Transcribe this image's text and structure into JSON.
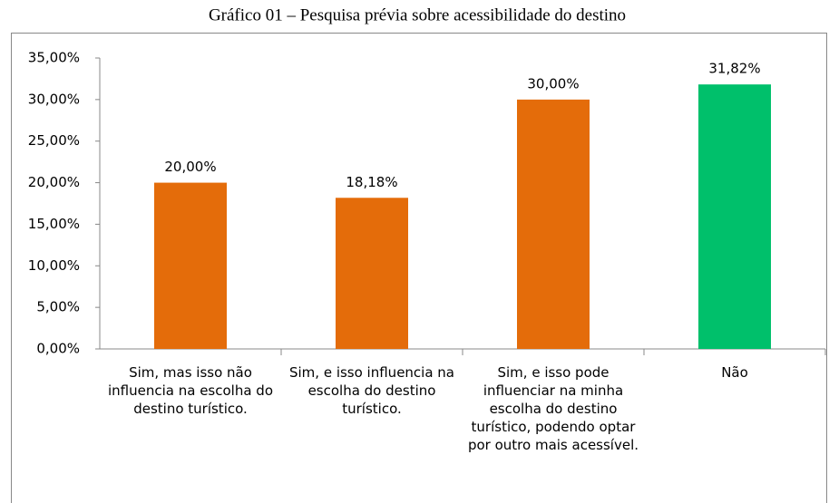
{
  "chart_data": {
    "type": "bar",
    "title": "Gráfico 01 – Pesquisa prévia sobre acessibilidade do destino",
    "categories": [
      "Sim, mas isso não influencia na escolha do destino turístico.",
      "Sim, e isso influencia na escolha do destino turístico.",
      "Sim, e isso pode influenciar na minha escolha do destino turístico, podendo optar por outro mais acessível.",
      "Não"
    ],
    "values": [
      20,
      18.18,
      30,
      31.82
    ],
    "value_labels": [
      "20,00%",
      "18,18%",
      "30,00%",
      "31,82%"
    ],
    "colors": [
      "#e46c0a",
      "#e46c0a",
      "#e46c0a",
      "#00c06b"
    ],
    "ylim": [
      0,
      35
    ],
    "yticks": [
      {
        "value": 0,
        "label": "0,00%"
      },
      {
        "value": 5,
        "label": "5,00%"
      },
      {
        "value": 10,
        "label": "10,00%"
      },
      {
        "value": 15,
        "label": "15,00%"
      },
      {
        "value": 20,
        "label": "20,00%"
      },
      {
        "value": 25,
        "label": "25,00%"
      },
      {
        "value": 30,
        "label": "30,00%"
      },
      {
        "value": 35,
        "label": "35,00%"
      }
    ],
    "grid": false
  }
}
